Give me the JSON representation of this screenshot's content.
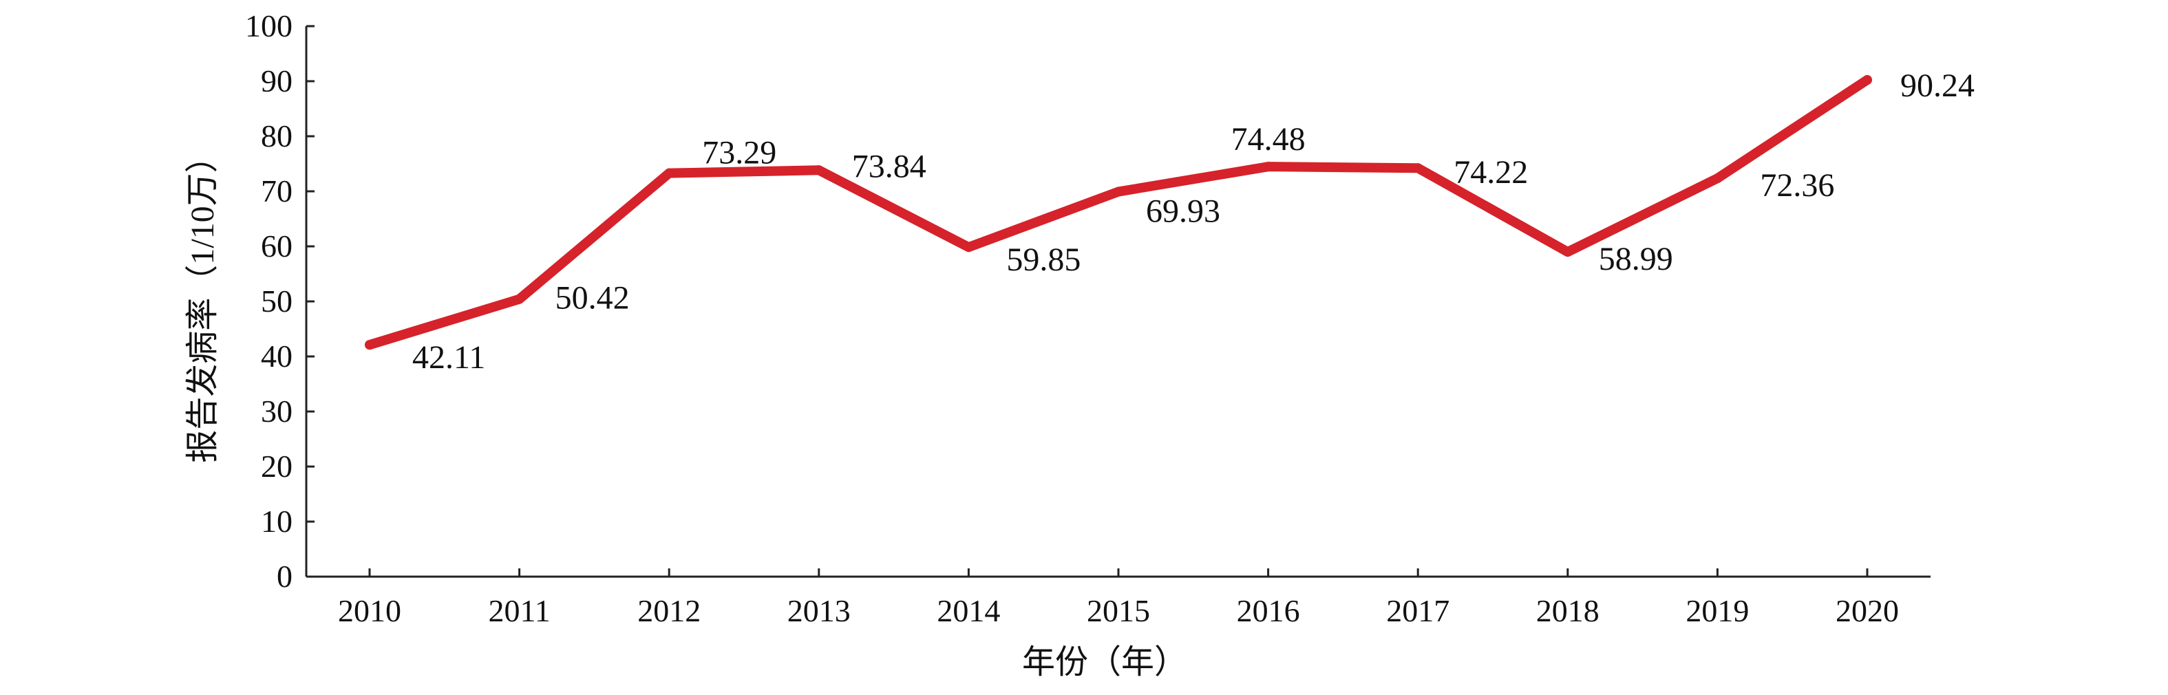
{
  "chart_data": {
    "type": "line",
    "title": "",
    "xlabel": "年份（年）",
    "ylabel": "报告发病率（1/10万）",
    "categories": [
      "2010",
      "2011",
      "2012",
      "2013",
      "2014",
      "2015",
      "2016",
      "2017",
      "2018",
      "2019",
      "2020"
    ],
    "series": [
      {
        "values": [
          42.11,
          50.42,
          73.29,
          73.84,
          59.85,
          69.93,
          74.48,
          74.22,
          58.99,
          72.36,
          90.24
        ],
        "labels": [
          "42.11",
          "50.42",
          "73.29",
          "73.84",
          "59.85",
          "69.93",
          "74.48",
          "74.22",
          "58.99",
          "72.36",
          "90.24"
        ],
        "color": "#d6222a"
      }
    ],
    "ylim": [
      0,
      100
    ],
    "yticks": [
      "0",
      "10",
      "20",
      "30",
      "40",
      "50",
      "60",
      "70",
      "80",
      "90",
      "100"
    ],
    "grid": false,
    "legend": "none"
  }
}
